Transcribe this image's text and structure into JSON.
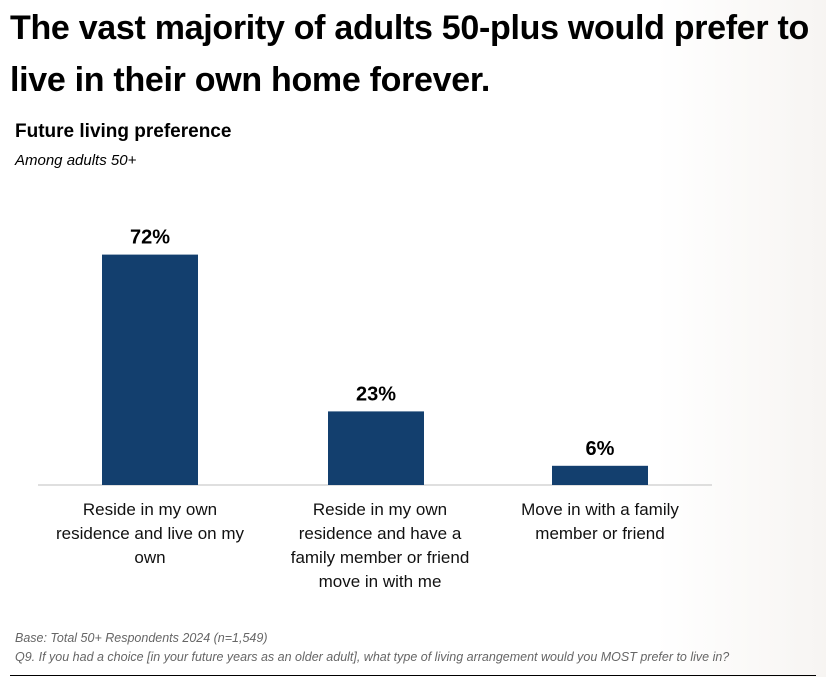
{
  "headline": "The vast majority of adults 50-plus would prefer to live in their own home forever.",
  "chart_data": {
    "type": "bar",
    "title": "Future living preference",
    "subtitle": "Among adults 50+",
    "categories": [
      "Reside in my own residence and live on my own",
      "Reside in my own residence and have a family member or friend move in with me",
      "Move in with a family member or friend"
    ],
    "values": [
      72,
      23,
      6
    ],
    "value_labels": [
      "72%",
      "23%",
      "6%"
    ],
    "ylim": [
      0,
      80
    ],
    "grid": false,
    "legend": "none",
    "bar_color": "#133f6e"
  },
  "footnotes": {
    "base": "Base: Total 50+ Respondents 2024 (n=1,549)",
    "question": "Q9. If you had a choice [in your future years as an older adult], what type of living arrangement would you MOST prefer to live in?"
  }
}
